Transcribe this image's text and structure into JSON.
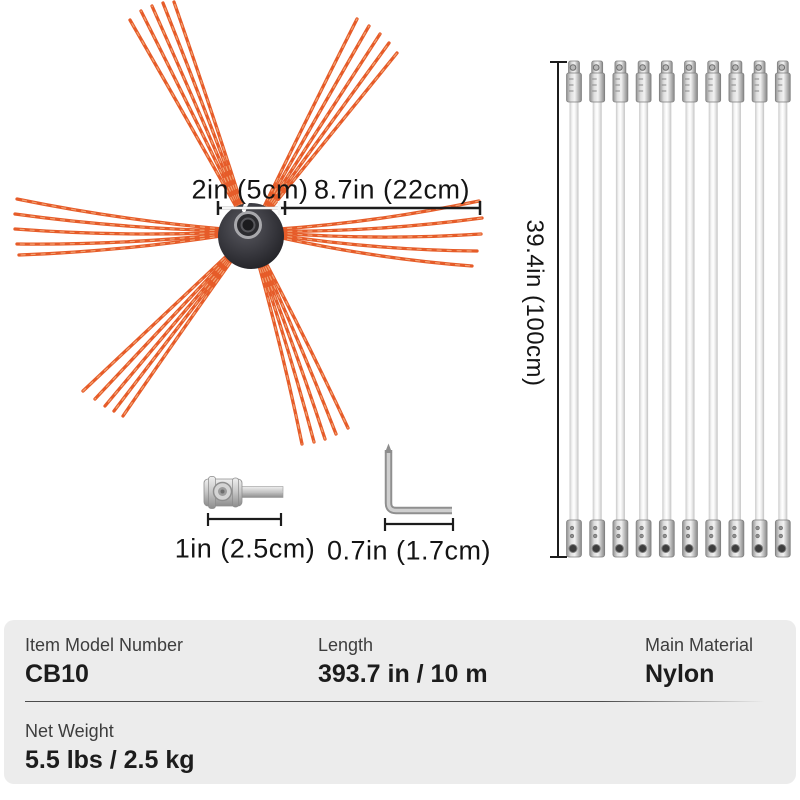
{
  "product": {
    "brush": {
      "hub_width_label": "2in (5cm)",
      "bristle_length_label": "8.7in (22cm)"
    },
    "rods": {
      "length_label": "39.4in (100cm)"
    },
    "adapter": {
      "size_label": "1in (2.5cm)"
    },
    "hex_key": {
      "size_label": "0.7in (1.7cm)"
    }
  },
  "specs": {
    "item_model": {
      "label": "Item Model Number",
      "value": "CB10"
    },
    "length": {
      "label": "Length",
      "value": "393.7 in / 10 m"
    },
    "material": {
      "label": "Main Material",
      "value": "Nylon"
    },
    "net_weight": {
      "label": "Net Weight",
      "value": "5.5 lbs / 2.5 kg"
    }
  },
  "colors": {
    "bristle_orange": "#e65c29",
    "panel_bg": "#ececec",
    "dimension_line": "#1c1c1c"
  }
}
